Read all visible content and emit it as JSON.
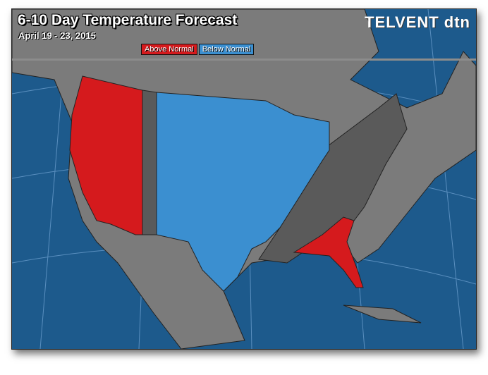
{
  "header": {
    "title": "6-10 Day Temperature Forecast",
    "date_range": "April 19 - 23, 2015",
    "logo": "TELVENT dtn"
  },
  "legend": [
    {
      "label": "Above Normal",
      "color": "#d51a1d"
    },
    {
      "label": "Below Normal",
      "color": "#3b8fd0"
    }
  ],
  "colors": {
    "ocean": "#1d5a8c",
    "land": "#7b7b7b",
    "near_normal": "#5a5a5a",
    "above": "#d51a1d",
    "below": "#3b8fd0"
  },
  "map": {
    "above_normal_regions": [
      "West Coast",
      "Great Basin",
      "Southwest",
      "Florida/Southeast coast"
    ],
    "below_normal_regions": [
      "Northern Plains",
      "Central Plains",
      "Texas",
      "Midwest",
      "Great Lakes"
    ],
    "near_normal_regions": [
      "Rockies strip",
      "Southeast",
      "Northeast"
    ]
  }
}
